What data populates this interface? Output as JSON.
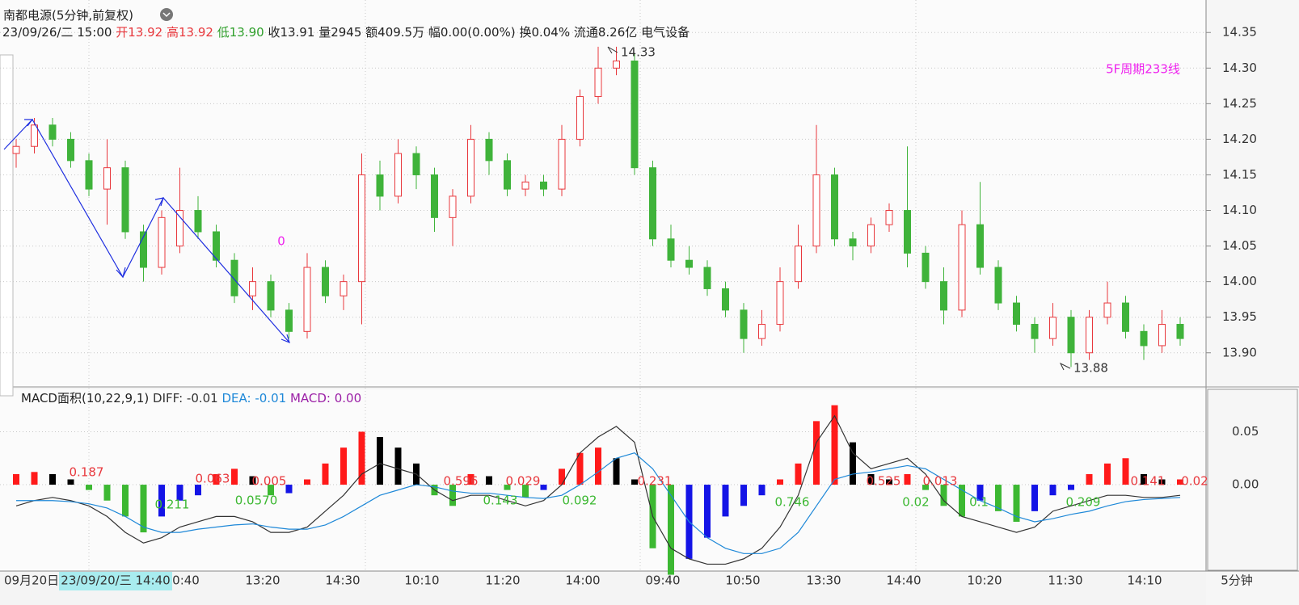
{
  "chart_data": [
    {
      "type": "candlestick",
      "title": "南都电源(5分钟,前复权)",
      "info": [
        "23/09/26/二 15:00",
        "开",
        "13.92",
        "高",
        "13.92",
        "低",
        "13.90",
        "收13.91",
        "量2945",
        "额409.5万",
        "幅0.00(0.00%)",
        "换0.04%",
        "流通8.26亿",
        "电气设备"
      ],
      "annotations": [
        "5F周期233线",
        "0",
        "14.33",
        "13.88"
      ],
      "open": [
        14.18,
        14.19,
        14.22,
        14.2,
        14.17,
        14.13,
        14.16,
        14.07,
        14.02,
        14.05,
        14.1,
        14.07,
        14.03,
        13.98,
        14.0,
        13.96,
        13.93,
        14.02,
        13.98,
        14.0,
        14.15,
        14.12,
        14.18,
        14.15,
        14.09,
        14.12,
        14.2,
        14.17,
        14.13,
        14.14,
        14.13,
        14.2,
        14.26,
        14.3,
        14.31,
        14.16,
        14.06,
        14.03,
        14.02,
        13.99,
        13.96,
        13.92,
        13.94,
        14.0,
        14.05,
        14.15,
        14.06,
        14.05,
        14.08,
        14.1,
        14.04,
        14.0,
        13.96,
        14.08,
        14.02,
        13.97,
        13.94,
        13.92,
        13.95,
        13.9,
        13.95,
        13.97,
        13.93,
        13.91,
        13.94
      ],
      "high": [
        14.2,
        14.23,
        14.23,
        14.21,
        14.18,
        14.2,
        14.17,
        14.08,
        14.1,
        14.16,
        14.12,
        14.08,
        14.04,
        14.02,
        14.01,
        13.97,
        14.04,
        14.03,
        14.01,
        14.18,
        14.17,
        14.2,
        14.19,
        14.16,
        14.13,
        14.22,
        14.21,
        14.18,
        14.15,
        14.15,
        14.22,
        14.27,
        14.33,
        14.33,
        14.32,
        14.17,
        14.08,
        14.05,
        14.03,
        14.0,
        13.97,
        13.96,
        14.02,
        14.08,
        14.22,
        14.16,
        14.07,
        14.09,
        14.11,
        14.19,
        14.05,
        14.02,
        14.1,
        14.14,
        14.03,
        13.98,
        13.95,
        13.97,
        13.96,
        13.96,
        14.0,
        13.98,
        13.94,
        13.96,
        13.95
      ],
      "low": [
        14.16,
        14.18,
        14.19,
        14.16,
        14.12,
        14.08,
        14.06,
        14.0,
        14.01,
        14.04,
        14.06,
        14.02,
        13.97,
        13.96,
        13.95,
        13.92,
        13.92,
        13.97,
        13.96,
        13.94,
        14.1,
        14.11,
        14.13,
        14.07,
        14.05,
        14.11,
        14.15,
        14.12,
        14.12,
        14.12,
        14.12,
        14.19,
        14.25,
        14.29,
        14.15,
        14.05,
        14.02,
        14.01,
        13.98,
        13.95,
        13.9,
        13.91,
        13.93,
        13.99,
        14.04,
        14.05,
        14.03,
        14.04,
        14.07,
        14.02,
        13.99,
        13.94,
        13.95,
        14.01,
        13.96,
        13.93,
        13.9,
        13.91,
        13.88,
        13.89,
        13.94,
        13.92,
        13.89,
        13.9,
        13.91
      ],
      "close": [
        14.19,
        14.22,
        14.2,
        14.17,
        14.13,
        14.16,
        14.07,
        14.02,
        14.09,
        14.1,
        14.07,
        14.03,
        13.98,
        14.0,
        13.96,
        13.93,
        14.02,
        13.98,
        14.0,
        14.15,
        14.12,
        14.18,
        14.15,
        14.09,
        14.12,
        14.2,
        14.17,
        14.13,
        14.14,
        14.13,
        14.2,
        14.26,
        14.3,
        14.31,
        14.16,
        14.06,
        14.03,
        14.02,
        13.99,
        13.96,
        13.92,
        13.94,
        14.0,
        14.05,
        14.15,
        14.06,
        14.05,
        14.08,
        14.1,
        14.04,
        14.0,
        13.96,
        14.08,
        14.02,
        13.97,
        13.94,
        13.92,
        13.95,
        13.9,
        13.95,
        13.97,
        13.93,
        13.91,
        13.94,
        13.92
      ],
      "up_color": "#e8383d",
      "down_color": "#3fb33a",
      "ylim": [
        13.86,
        14.39
      ],
      "yticks": [
        {
          "value": 13.9,
          "label": "13.90"
        },
        13.95,
        {
          "value": 14.0,
          "label": "14.00"
        },
        14.05,
        {
          "value": 14.1,
          "label": "14.10"
        },
        14.15,
        {
          "value": 14.2,
          "label": "14.20"
        },
        14.25,
        {
          "value": 14.3,
          "label": "14.30"
        },
        14.35
      ],
      "x_labels": [
        "09月20日",
        "23/09/20/三 14:40",
        "0:40",
        "13:20",
        "14:30",
        "10:10",
        "11:20",
        "14:00",
        "09:40",
        "10:50",
        "13:30",
        "14:40",
        "10:20",
        "11:30",
        "14:10",
        "5分钟"
      ],
      "grid": true
    },
    {
      "type": "macd",
      "title": "MACD面积(10,22,9,1)",
      "hist_name": "MACD: 0.00",
      "hist_name_color": "#9b1fa6",
      "values": [
        0.01,
        0.012,
        0.01,
        0.005,
        -0.005,
        -0.015,
        -0.03,
        -0.045,
        -0.03,
        -0.015,
        -0.01,
        0.01,
        0.015,
        0.008,
        -0.01,
        -0.008,
        0.005,
        0.02,
        0.035,
        0.05,
        0.045,
        0.035,
        0.02,
        -0.01,
        -0.02,
        0.01,
        0.008,
        -0.005,
        -0.012,
        -0.005,
        0.015,
        0.03,
        0.035,
        0.025,
        0.005,
        -0.06,
        -0.085,
        -0.07,
        -0.05,
        -0.03,
        -0.02,
        -0.01,
        0.005,
        0.02,
        0.06,
        0.075,
        0.04,
        0.01,
        0.005,
        0.01,
        -0.005,
        -0.02,
        -0.03,
        -0.015,
        -0.025,
        -0.035,
        -0.025,
        -0.01,
        -0.005,
        0.01,
        0.02,
        0.025,
        0.01,
        0.005,
        0.005
      ],
      "bar_colors": [
        "#ff1a1a",
        "#000000",
        "#3cb832",
        "#1414e6"
      ],
      "series": [
        {
          "name": "DIFF: -0.01",
          "color": "#333333",
          "values": [
            -0.02,
            -0.015,
            -0.012,
            -0.015,
            -0.02,
            -0.03,
            -0.045,
            -0.055,
            -0.05,
            -0.04,
            -0.035,
            -0.03,
            -0.03,
            -0.035,
            -0.045,
            -0.045,
            -0.04,
            -0.025,
            -0.01,
            0.01,
            0.02,
            0.015,
            0.01,
            -0.005,
            -0.015,
            -0.01,
            -0.01,
            -0.015,
            -0.02,
            -0.015,
            0.0,
            0.03,
            0.045,
            0.055,
            0.04,
            -0.03,
            -0.06,
            -0.07,
            -0.075,
            -0.075,
            -0.07,
            -0.06,
            -0.04,
            -0.01,
            0.04,
            0.065,
            0.03,
            0.015,
            0.02,
            0.025,
            0.01,
            -0.015,
            -0.03,
            -0.035,
            -0.04,
            -0.045,
            -0.04,
            -0.025,
            -0.02,
            -0.015,
            -0.01,
            -0.01,
            -0.012,
            -0.012,
            -0.01
          ]
        },
        {
          "name": "DEA: -0.01",
          "color": "#1e88d8",
          "values": [
            -0.015,
            -0.015,
            -0.015,
            -0.016,
            -0.018,
            -0.022,
            -0.03,
            -0.04,
            -0.045,
            -0.045,
            -0.042,
            -0.04,
            -0.038,
            -0.037,
            -0.04,
            -0.042,
            -0.042,
            -0.038,
            -0.03,
            -0.02,
            -0.01,
            -0.005,
            0.0,
            -0.002,
            -0.006,
            -0.008,
            -0.008,
            -0.01,
            -0.012,
            -0.013,
            -0.01,
            0.0,
            0.012,
            0.025,
            0.03,
            0.015,
            -0.01,
            -0.035,
            -0.05,
            -0.06,
            -0.065,
            -0.065,
            -0.06,
            -0.045,
            -0.02,
            0.005,
            0.01,
            0.012,
            0.015,
            0.018,
            0.015,
            0.005,
            -0.005,
            -0.015,
            -0.022,
            -0.03,
            -0.035,
            -0.032,
            -0.028,
            -0.025,
            -0.02,
            -0.016,
            -0.014,
            -0.013,
            -0.012
          ]
        }
      ],
      "area_labels": [
        "0.187",
        "0.211",
        "0.063",
        "0.0570",
        "0.005",
        "0.596",
        "0.143",
        "0.029",
        "0.092",
        "0.231",
        "0.746",
        "0.525",
        "0.02",
        "0.013",
        "0.1",
        "0.209",
        "0.141",
        "0.02"
      ],
      "ylim": [
        -0.08,
        0.09
      ],
      "yticks": [
        {
          "value": 0,
          "label": "0.00"
        },
        0.05
      ]
    }
  ]
}
